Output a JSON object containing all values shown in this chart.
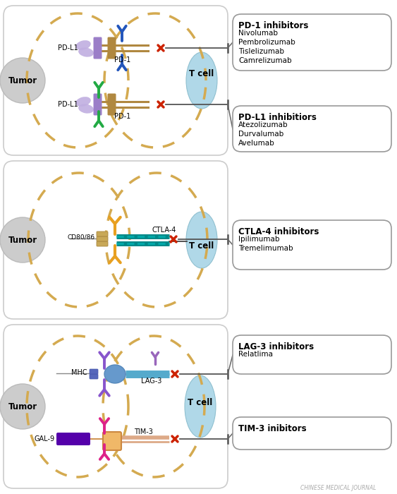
{
  "panel1": {
    "tumor_label": "Tumor",
    "tcell_label": "T cell",
    "box1_title": "PD-1 inhibitors",
    "box1_drugs": [
      "Nivolumab",
      "Pembrolizumab",
      "Tislelizumab",
      "Camrelizumab"
    ],
    "box2_title": "PD-L1 inhibitiors",
    "box2_drugs": [
      "Atezolizumab",
      "Durvalumab",
      "Avelumab"
    ],
    "pdl1_label": "PD-L1",
    "pd1_label_r1": "PD-1",
    "pd1_label_r2": "PD-1"
  },
  "panel2": {
    "tumor_label": "Tumor",
    "tcell_label": "T cell",
    "cd_label": "CD80/86",
    "ctla_label": "CTLA-4",
    "box_title": "CTLA-4 inhibitors",
    "box_drugs": [
      "Ipilimumab",
      "Tremelimumab"
    ]
  },
  "panel3": {
    "tumor_label": "Tumor",
    "tcell_label": "T cell",
    "mhc_label": "MHC",
    "lag_label": "LAG-3",
    "gal_label": "GAL-9",
    "tim_label": "TIM-3",
    "box1_title": "LAG-3 inhibitors",
    "box1_drugs": [
      "Relatlima"
    ],
    "box2_title": "TIM-3 inibitors",
    "box2_drugs": []
  },
  "footer": "CHINESE MEDICAL JOURNAL",
  "bg_color": "#ffffff",
  "dotted_color": "#d4aa50",
  "tumor_color": "#cccccc",
  "tcell_color": "#b0d8e8"
}
